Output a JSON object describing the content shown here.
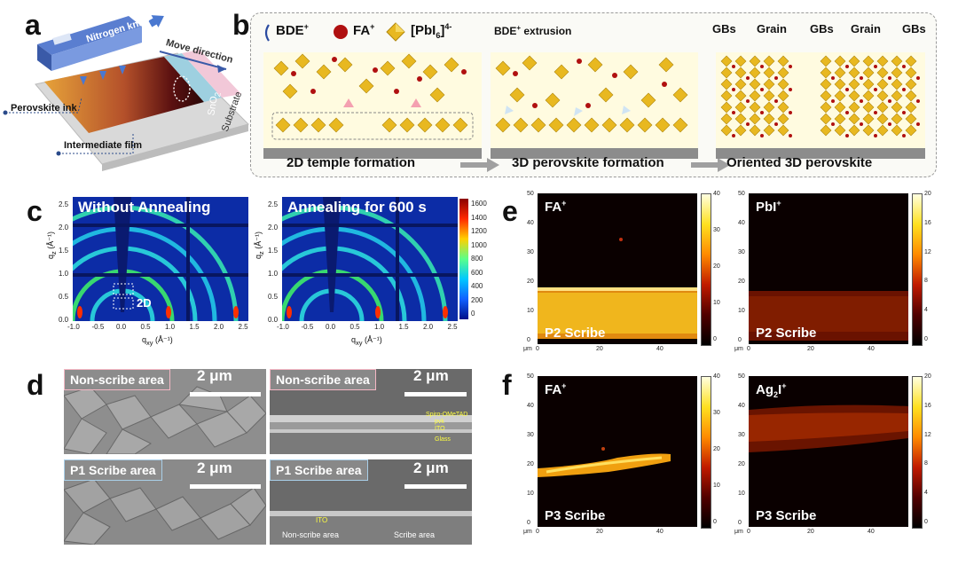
{
  "panels": {
    "a": "a",
    "b": "b",
    "c": "c",
    "d": "d",
    "e": "e",
    "f": "f"
  },
  "panel_a": {
    "nitrogen_knife": "Nitrogen knife",
    "move_direction": "Move direction",
    "perovskite_ink": "Perovskite ink",
    "intermediate_film": "Intermediate film",
    "sno2": "SnO",
    "sno2_sub": "2",
    "substrate": "Substrate"
  },
  "panel_b": {
    "legend_bde": "BDE",
    "legend_bde_sup": "+",
    "legend_fa": "FA",
    "legend_fa_sup": "+",
    "legend_pbi_pre": "[PbI",
    "legend_pbi_sub": "6",
    "legend_pbi_post": "]",
    "legend_pbi_sup": "4-",
    "extrusion_pre": "BDE",
    "extrusion_sup": "+",
    "extrusion_post": " extrusion",
    "gbs_labels": [
      "GBs",
      "Grain",
      "GBs",
      "Grain",
      "GBs"
    ],
    "stage1": "2D temple formation",
    "stage2": "3D perovskite formation",
    "stage3": "Oriented 3D perovskite",
    "colors": {
      "octahedron": "#e8b820",
      "fa": "#b01010",
      "bde": "#2a4aa0",
      "substrate": "#8c8c8c"
    }
  },
  "panel_c": {
    "left_title": "Without Annealing",
    "right_title": "Annealing for 600 s",
    "label_2d": "2D",
    "y_axis_label": "q",
    "y_axis_sub": "z",
    "y_axis_unit": " (Å⁻¹)",
    "x_axis_label": "q",
    "x_axis_sub": "xy",
    "x_axis_unit": " (Å⁻¹)",
    "x_ticks": [
      "-1.0",
      "-0.5",
      "0.0",
      "0.5",
      "1.0",
      "1.5",
      "2.0",
      "2.5"
    ],
    "y_ticks": [
      "2.5",
      "2.0",
      "1.5",
      "1.0",
      "0.5",
      "0.0"
    ],
    "colorbar_ticks": [
      "1600",
      "1400",
      "1200",
      "1000",
      "800",
      "600",
      "400",
      "200",
      "0"
    ]
  },
  "panel_d": {
    "tiles": [
      {
        "label": "Non-scribe area",
        "scale": "2 μm",
        "border": "pink"
      },
      {
        "label": "Non-scribe area",
        "scale": "2 μm",
        "border": "pink"
      },
      {
        "label": "P1 Scribe area",
        "scale": "2 μm",
        "border": "blue"
      },
      {
        "label": "P1 Scribe area",
        "scale": "2 μm",
        "border": "blue"
      }
    ],
    "layers": [
      "Spiro-OMeTAD",
      "pvk",
      "ITO",
      "Glass"
    ],
    "ito_label": "ITO",
    "bottom_left": "Non-scribe area",
    "bottom_right": "Scribe area"
  },
  "panel_e": {
    "maps": [
      {
        "ion": "FA",
        "ion_sup": "+",
        "ion_sub": "",
        "ion_tail": "",
        "scribe": "P2 Scribe",
        "cbar": [
          "40",
          "30",
          "20",
          "10",
          "0"
        ]
      },
      {
        "ion": "PbI",
        "ion_sup": "+",
        "ion_sub": "",
        "ion_tail": "",
        "scribe": "P2 Scribe",
        "cbar": [
          "20",
          "16",
          "12",
          "8",
          "4",
          "0"
        ]
      }
    ]
  },
  "panel_f": {
    "maps": [
      {
        "ion": "FA",
        "ion_sup": "+",
        "ion_sub": "",
        "ion_tail": "",
        "scribe": "P3 Scribe",
        "cbar": [
          "40",
          "30",
          "20",
          "10",
          "0"
        ]
      },
      {
        "ion": "Ag",
        "ion_sub": "2",
        "ion_tail": "I",
        "ion_sup": "+",
        "scribe": "P3 Scribe",
        "cbar": [
          "20",
          "16",
          "12",
          "8",
          "4",
          "0"
        ]
      }
    ]
  },
  "tof_axes": {
    "y_ticks": [
      "50",
      "40",
      "30",
      "20",
      "10",
      "0"
    ],
    "x_ticks": [
      "0",
      "20",
      "40"
    ],
    "unit": "μm"
  }
}
